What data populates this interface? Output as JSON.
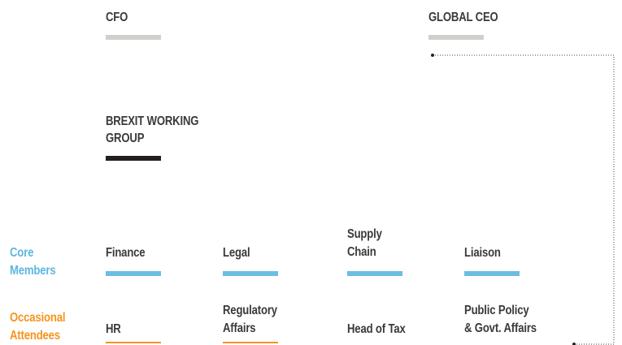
{
  "nodes": [
    {
      "lines": [
        "CFO"
      ]
    },
    {
      "lines": [
        "GLOBAL CEO"
      ]
    },
    {
      "lines": [
        "BREXIT WORKING",
        "GROUP"
      ]
    },
    {
      "lines": [
        "Finance"
      ]
    },
    {
      "lines": [
        "Legal"
      ]
    },
    {
      "lines": [
        "Supply",
        "Chain"
      ]
    },
    {
      "lines": [
        "Liaison"
      ]
    },
    {
      "lines": [
        "HR"
      ]
    },
    {
      "lines": [
        "Regulatory",
        "Affairs"
      ]
    },
    {
      "lines": [
        "Head of Tax"
      ]
    },
    {
      "lines": [
        "Public Policy",
        "& Govt. Affairs"
      ]
    }
  ],
  "row_labels": [
    {
      "lines": [
        "Core",
        "Members"
      ]
    },
    {
      "lines": [
        "Occasional",
        "Attendees"
      ]
    }
  ]
}
